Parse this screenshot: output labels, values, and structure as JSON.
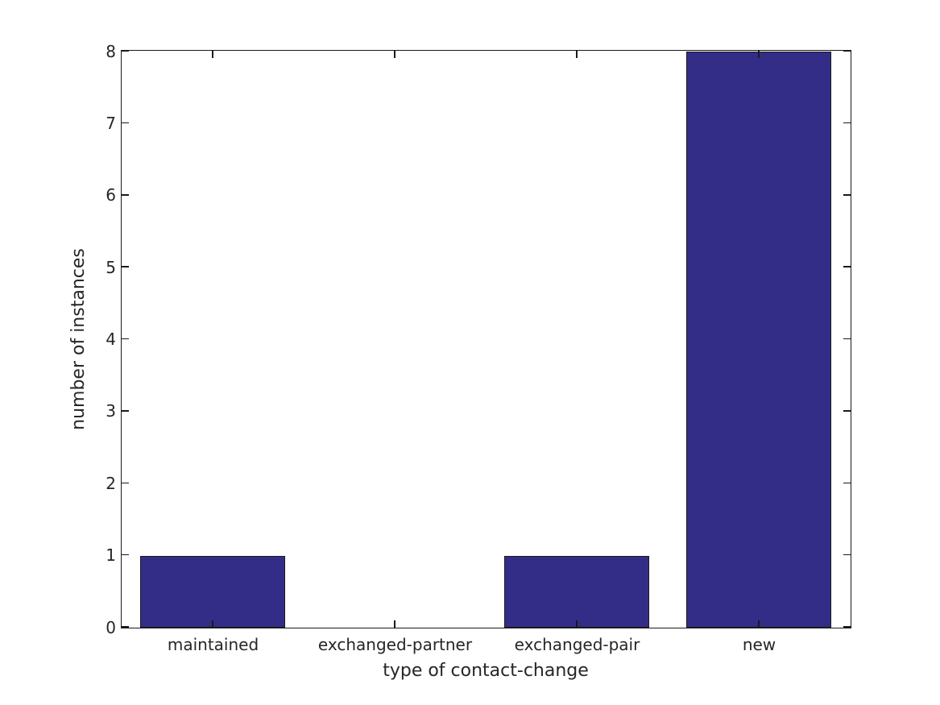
{
  "chart_data": {
    "type": "bar",
    "categories": [
      "maintained",
      "exchanged-partner",
      "exchanged-pair",
      "new"
    ],
    "values": [
      1,
      0,
      1,
      8
    ],
    "xlabel": "type of contact-change",
    "ylabel": "number of instances",
    "ylim": [
      0,
      8
    ],
    "yticks": [
      0,
      1,
      2,
      3,
      4,
      5,
      6,
      7,
      8
    ],
    "bar_width_fraction": 0.8,
    "bar_color": "#342d87",
    "bar_edge_color": "#1a1a1a",
    "axis_color": "#1a1a1a",
    "text_color": "#262626",
    "background_color": "#ffffff",
    "grid": false,
    "legend": null,
    "tick_direction": "in",
    "ticks_all_sides": true
  }
}
